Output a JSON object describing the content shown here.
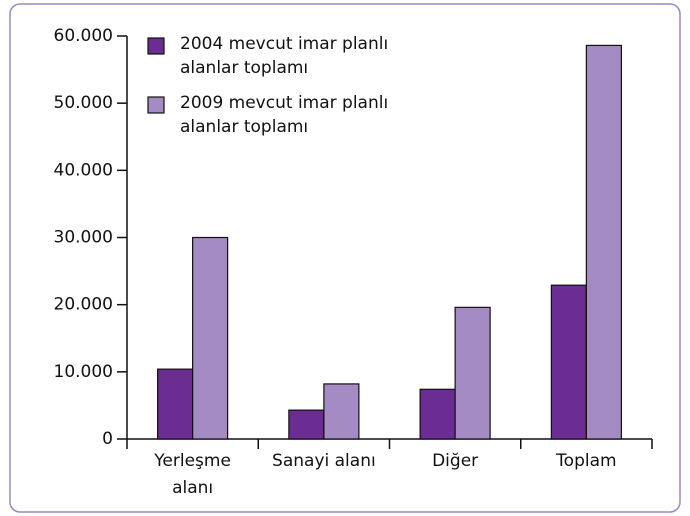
{
  "chart_data": {
    "type": "bar",
    "categories": [
      "Yerleşme alanı",
      "Sanayi alanı",
      "Diğer",
      "Toplam"
    ],
    "series": [
      {
        "name": "2004 mevcut imar planlı alanlar toplamı",
        "color": "#6b2d91",
        "values": [
          10400,
          4300,
          7400,
          22900
        ]
      },
      {
        "name": "2009 mevcut imar planlı alanlar toplamı",
        "color": "#a58bc4",
        "values": [
          30000,
          8200,
          19600,
          58600
        ]
      }
    ],
    "ylim": [
      0,
      60000
    ],
    "yticks": [
      0,
      {
        "value": 10000,
        "label": "10.000"
      },
      {
        "value": 20000,
        "label": "20.000"
      },
      {
        "value": 30000,
        "label": "30.000"
      },
      {
        "value": 40000,
        "label": "40.000"
      },
      {
        "value": 50000,
        "label": "50.000"
      },
      {
        "value": 60000,
        "label": "60.000"
      }
    ],
    "legend": "top-left"
  }
}
